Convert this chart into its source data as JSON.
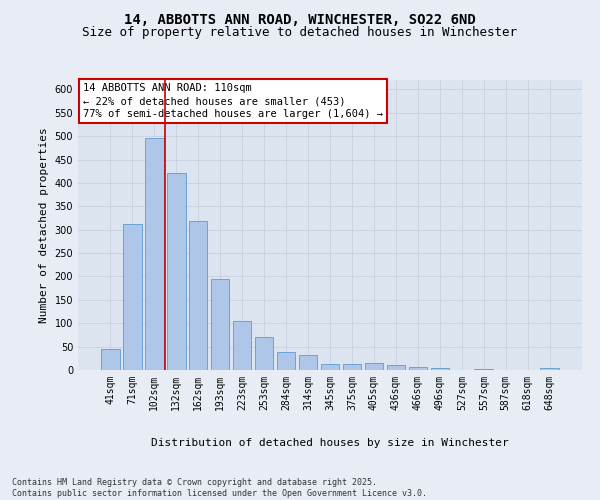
{
  "title_line1": "14, ABBOTTS ANN ROAD, WINCHESTER, SO22 6ND",
  "title_line2": "Size of property relative to detached houses in Winchester",
  "xlabel": "Distribution of detached houses by size in Winchester",
  "ylabel": "Number of detached properties",
  "categories": [
    "41sqm",
    "71sqm",
    "102sqm",
    "132sqm",
    "162sqm",
    "193sqm",
    "223sqm",
    "253sqm",
    "284sqm",
    "314sqm",
    "345sqm",
    "375sqm",
    "405sqm",
    "436sqm",
    "466sqm",
    "496sqm",
    "527sqm",
    "557sqm",
    "587sqm",
    "618sqm",
    "648sqm"
  ],
  "values": [
    45,
    312,
    497,
    422,
    319,
    194,
    104,
    70,
    38,
    32,
    13,
    12,
    14,
    10,
    7,
    5,
    0,
    3,
    0,
    0,
    4
  ],
  "bar_color": "#aec6e8",
  "bar_edge_color": "#5b9bd5",
  "vline_x_idx": 2,
  "vline_color": "#cc0000",
  "annotation_text": "14 ABBOTTS ANN ROAD: 110sqm\n← 22% of detached houses are smaller (453)\n77% of semi-detached houses are larger (1,604) →",
  "annotation_box_color": "#ffffff",
  "annotation_box_edge": "#cc0000",
  "ylim": [
    0,
    620
  ],
  "yticks": [
    0,
    50,
    100,
    150,
    200,
    250,
    300,
    350,
    400,
    450,
    500,
    550,
    600
  ],
  "grid_color": "#c8d0e0",
  "bg_color": "#e8ecf4",
  "plot_bg_color": "#dce4f0",
  "footer_text": "Contains HM Land Registry data © Crown copyright and database right 2025.\nContains public sector information licensed under the Open Government Licence v3.0.",
  "title_fontsize": 10,
  "subtitle_fontsize": 9,
  "axis_label_fontsize": 8,
  "tick_fontsize": 7,
  "annotation_fontsize": 7.5
}
